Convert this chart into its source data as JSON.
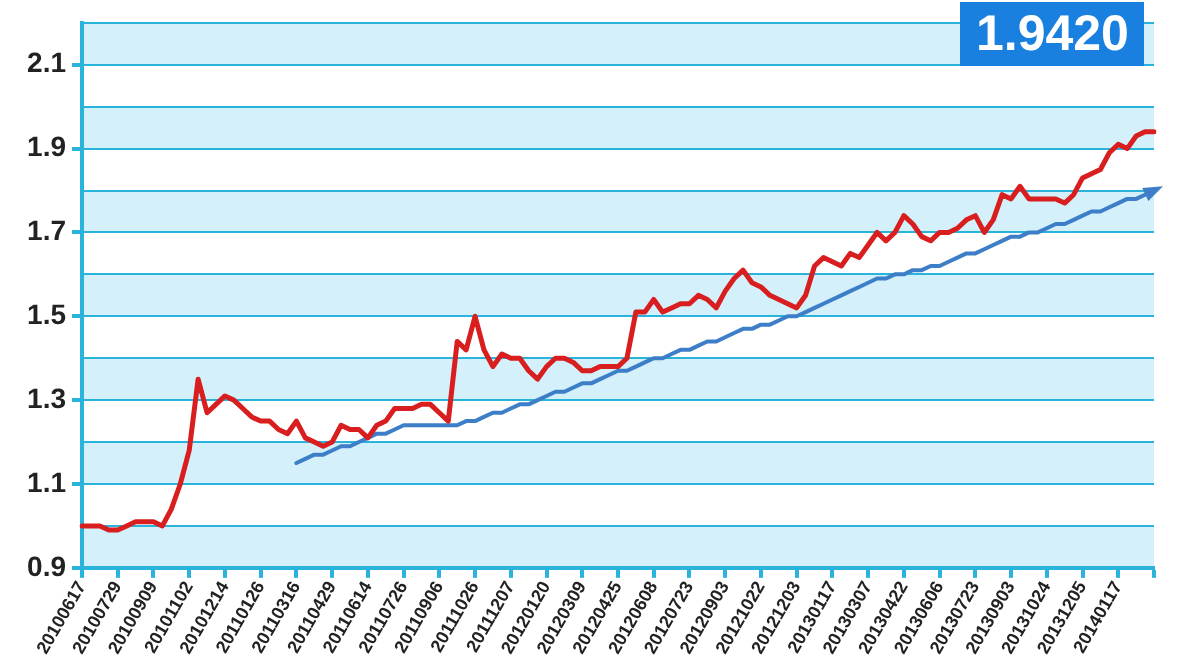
{
  "chart_data": {
    "type": "line",
    "categories": [
      "20100617",
      null,
      null,
      null,
      "20100729",
      null,
      null,
      null,
      "20100909",
      null,
      null,
      null,
      "20101102",
      null,
      null,
      null,
      "20101214",
      null,
      null,
      null,
      "20110126",
      null,
      null,
      null,
      "20110316",
      null,
      null,
      null,
      "20110429",
      null,
      null,
      null,
      "20110614",
      null,
      null,
      null,
      "20110726",
      null,
      null,
      null,
      "20110906",
      null,
      null,
      null,
      "20111026",
      null,
      null,
      null,
      "20111207",
      null,
      null,
      null,
      "20120120",
      null,
      null,
      null,
      "20120309",
      null,
      null,
      null,
      "20120425",
      null,
      null,
      null,
      "20120608",
      null,
      null,
      null,
      "20120723",
      null,
      null,
      null,
      "20120903",
      null,
      null,
      null,
      "20121022",
      null,
      null,
      null,
      "20121203",
      null,
      null,
      null,
      "20130117",
      null,
      null,
      null,
      "20130307",
      null,
      null,
      null,
      "20130422",
      null,
      null,
      null,
      "20130606",
      null,
      null,
      null,
      "20130723",
      null,
      null,
      null,
      "20130903",
      null,
      null,
      null,
      "20131024",
      null,
      null,
      null,
      "20131205",
      null,
      null,
      null,
      "20140117",
      null,
      null,
      null,
      null
    ],
    "series": [
      {
        "color": "#d81e1e",
        "values": [
          1.0,
          1.0,
          1.0,
          0.99,
          0.99,
          1.0,
          1.01,
          1.01,
          1.01,
          1.0,
          1.04,
          1.1,
          1.18,
          1.35,
          1.27,
          1.29,
          1.31,
          1.3,
          1.28,
          1.26,
          1.25,
          1.25,
          1.23,
          1.22,
          1.25,
          1.21,
          1.2,
          1.19,
          1.2,
          1.24,
          1.23,
          1.23,
          1.21,
          1.24,
          1.25,
          1.28,
          1.28,
          1.28,
          1.29,
          1.29,
          1.27,
          1.25,
          1.44,
          1.42,
          1.5,
          1.42,
          1.38,
          1.41,
          1.4,
          1.4,
          1.37,
          1.35,
          1.38,
          1.4,
          1.4,
          1.39,
          1.37,
          1.37,
          1.38,
          1.38,
          1.38,
          1.4,
          1.51,
          1.51,
          1.54,
          1.51,
          1.52,
          1.53,
          1.53,
          1.55,
          1.54,
          1.52,
          1.56,
          1.59,
          1.61,
          1.58,
          1.57,
          1.55,
          1.54,
          1.53,
          1.52,
          1.55,
          1.62,
          1.64,
          1.63,
          1.62,
          1.65,
          1.64,
          1.67,
          1.7,
          1.68,
          1.7,
          1.74,
          1.72,
          1.69,
          1.68,
          1.7,
          1.7,
          1.71,
          1.73,
          1.74,
          1.7,
          1.73,
          1.79,
          1.78,
          1.81,
          1.78,
          1.78,
          1.78,
          1.78,
          1.77,
          1.79,
          1.83,
          1.84,
          1.85,
          1.89,
          1.91,
          1.9,
          1.93,
          1.94,
          1.94
        ]
      },
      {
        "type": "line",
        "color": "#3c7fc8",
        "values": [
          null,
          null,
          null,
          null,
          null,
          null,
          null,
          null,
          null,
          null,
          null,
          null,
          null,
          null,
          null,
          null,
          null,
          null,
          null,
          null,
          null,
          null,
          null,
          null,
          1.15,
          1.16,
          1.17,
          1.17,
          1.18,
          1.19,
          1.19,
          1.2,
          1.21,
          1.22,
          1.22,
          1.23,
          1.24,
          1.24,
          1.24,
          1.24,
          1.24,
          1.24,
          1.24,
          1.25,
          1.25,
          1.26,
          1.27,
          1.27,
          1.28,
          1.29,
          1.29,
          1.3,
          1.31,
          1.32,
          1.32,
          1.33,
          1.34,
          1.34,
          1.35,
          1.36,
          1.37,
          1.37,
          1.38,
          1.39,
          1.4,
          1.4,
          1.41,
          1.42,
          1.42,
          1.43,
          1.44,
          1.44,
          1.45,
          1.46,
          1.47,
          1.47,
          1.48,
          1.48,
          1.49,
          1.5,
          1.5,
          1.51,
          1.52,
          1.53,
          1.54,
          1.55,
          1.56,
          1.57,
          1.58,
          1.59,
          1.59,
          1.6,
          1.6,
          1.61,
          1.61,
          1.62,
          1.62,
          1.63,
          1.64,
          1.65,
          1.65,
          1.66,
          1.67,
          1.68,
          1.69,
          1.69,
          1.7,
          1.7,
          1.71,
          1.72,
          1.72,
          1.73,
          1.74,
          1.75,
          1.75,
          1.76,
          1.77,
          1.78,
          1.78,
          1.79,
          1.8
        ]
      }
    ],
    "ylim": [
      0.9,
      2.2
    ],
    "yticks": [
      0.9,
      {
        "value": 1.0,
        "label": null
      },
      1.1,
      {
        "value": 1.2,
        "label": null
      },
      1.3,
      {
        "value": 1.4,
        "label": null
      },
      1.5,
      {
        "value": 1.6,
        "label": null
      },
      1.7,
      {
        "value": 1.8,
        "label": null
      },
      1.9,
      {
        "value": 2.0,
        "label": null
      },
      2.1,
      {
        "value": 2.2,
        "label": null
      }
    ],
    "grid": "y",
    "legend": false,
    "marker": "none",
    "line_style": "solid",
    "annotations": [
      "1.9420"
    ]
  }
}
